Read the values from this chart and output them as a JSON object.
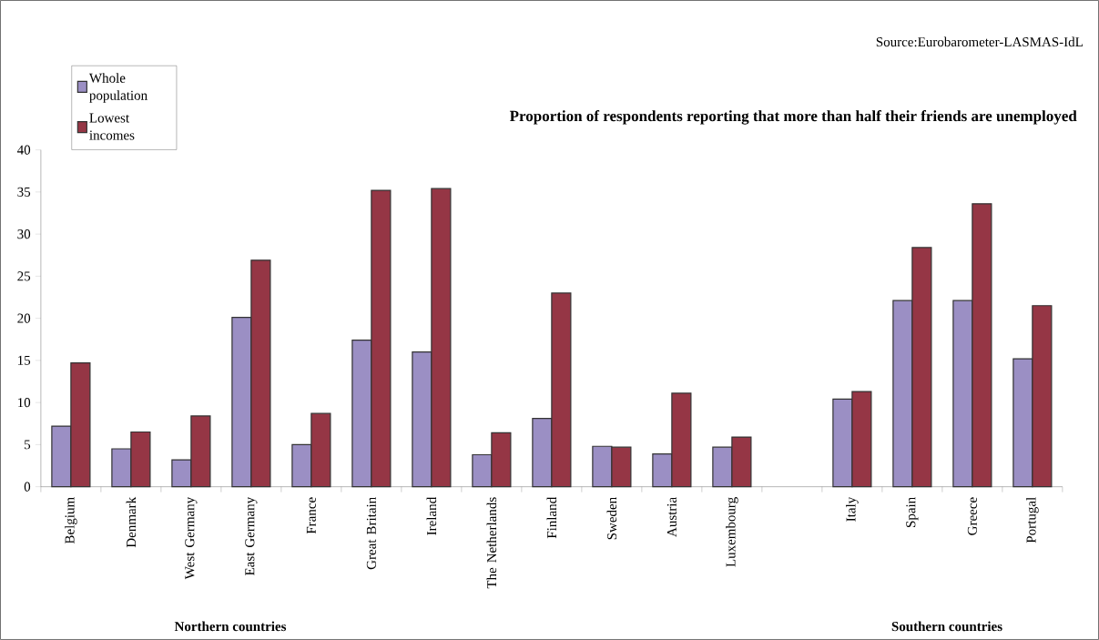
{
  "chart_data": {
    "type": "bar",
    "title": "Proportion of respondents reporting that more than half their friends are unemployed",
    "annotations": [
      "Source:Eurobarometer-LASMAS-IdL",
      "Northern countries",
      "Southern countries"
    ],
    "categories": [
      "Belgium",
      "Denmark",
      "West Germany",
      "East Germany",
      "France",
      "Great Britain",
      "Ireland",
      "The Netherlands",
      "Finland",
      "Sweden",
      "Austria",
      "Luxembourg",
      null,
      "Italy",
      "Spain",
      "Greece",
      "Portugal"
    ],
    "series": [
      {
        "name": "Whole population",
        "color": "#9b8fc4",
        "values": [
          7.2,
          4.5,
          3.2,
          20.1,
          5.0,
          17.4,
          16.0,
          3.8,
          8.1,
          4.8,
          3.9,
          4.7,
          null,
          10.4,
          22.1,
          22.1,
          15.2
        ]
      },
      {
        "name": "Lowest incomes",
        "color": "#953645",
        "values": [
          14.7,
          6.5,
          8.4,
          26.9,
          8.7,
          35.2,
          35.4,
          6.4,
          23.0,
          4.7,
          11.1,
          5.9,
          null,
          11.3,
          28.4,
          33.6,
          21.5
        ]
      }
    ],
    "ylim": [
      0,
      40
    ],
    "yticks": [
      0,
      5,
      10,
      15,
      20,
      25,
      30,
      35,
      40
    ],
    "legend": "top left"
  }
}
